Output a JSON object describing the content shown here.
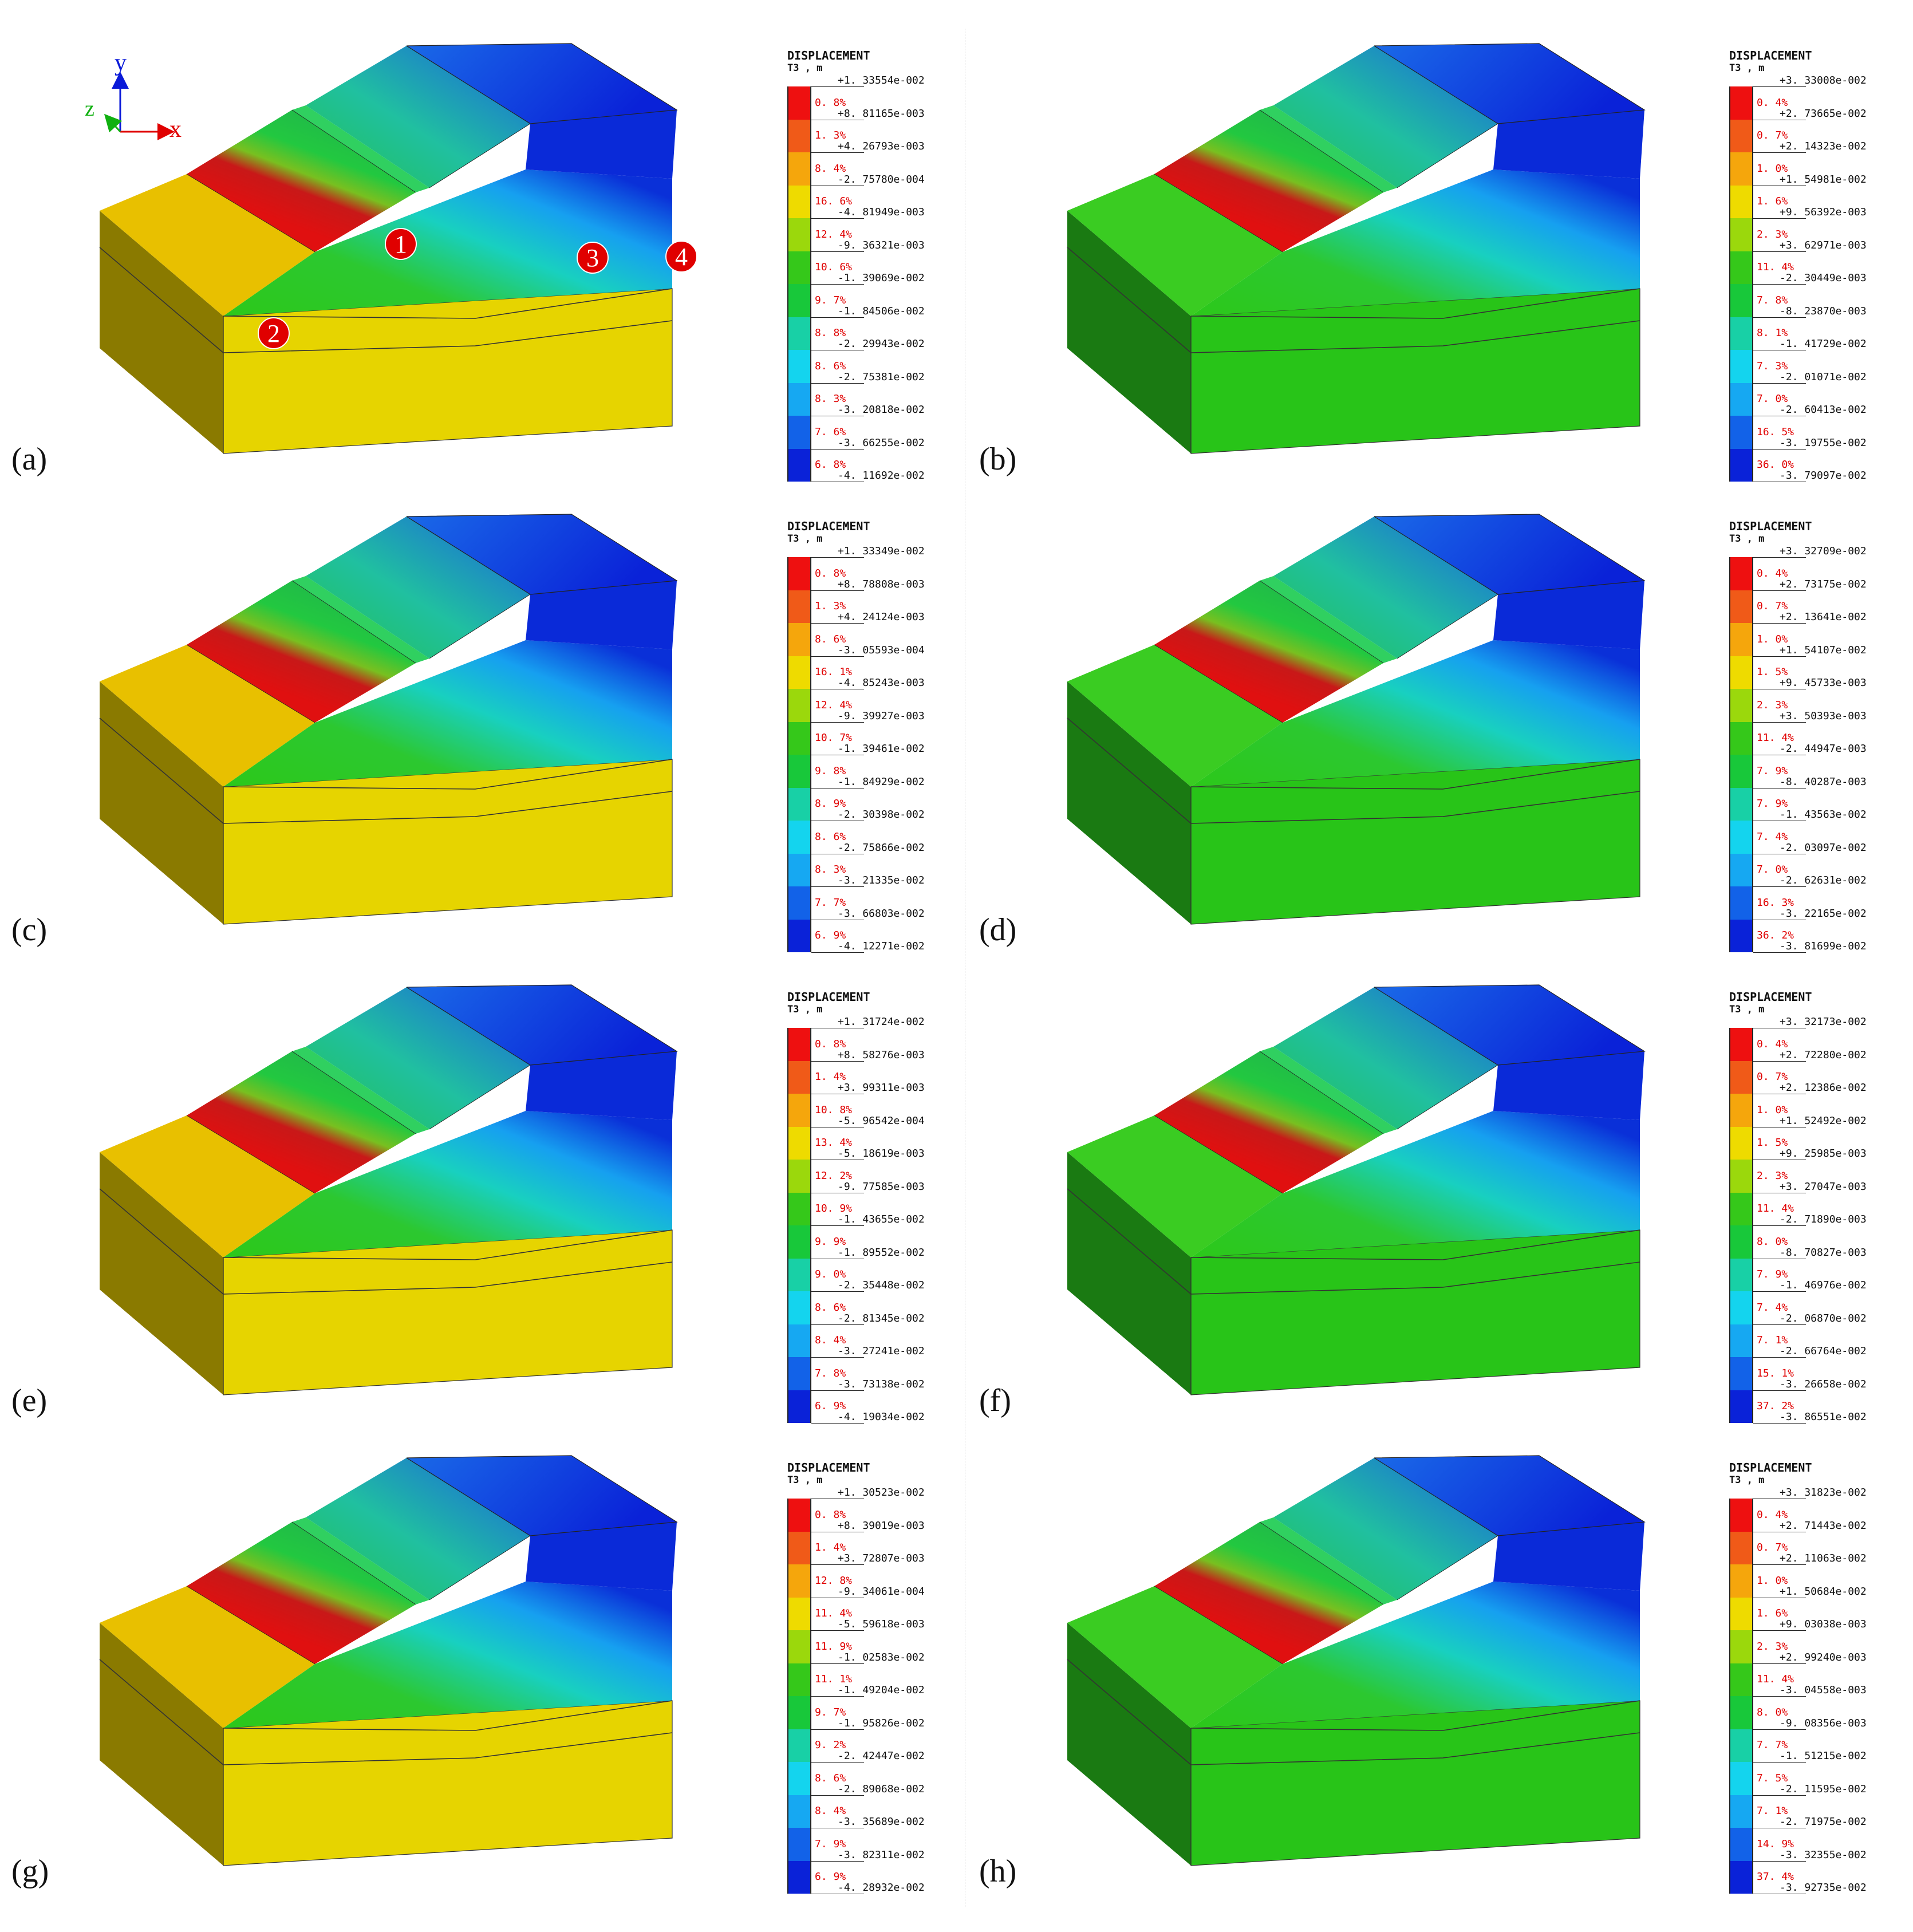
{
  "legend_title": "DISPLACEMENT",
  "legend_subtitle": "T3 , m",
  "axes": {
    "y": "y",
    "z": "z",
    "x": "x"
  },
  "markers": [
    "1",
    "2",
    "3",
    "4"
  ],
  "colors": {
    "bands": [
      "#ee1010",
      "#f05a18",
      "#f5a60c",
      "#eedb00",
      "#9bd80c",
      "#35c81a",
      "#18c83a",
      "#18d0a6",
      "#14d4ee",
      "#16a8f2",
      "#1262e8",
      "#0a22d8"
    ],
    "base_yellow": "#e8d200",
    "base_green": "#2ccb1a"
  },
  "panels": [
    {
      "label": "(a)",
      "variant": "yellow",
      "markers": true,
      "values": [
        "+1. 33554e-002",
        "+8. 81165e-003",
        "+4. 26793e-003",
        "-2. 75780e-004",
        "-4. 81949e-003",
        "-9. 36321e-003",
        "-1. 39069e-002",
        "-1. 84506e-002",
        "-2. 29943e-002",
        "-2. 75381e-002",
        "-3. 20818e-002",
        "-3. 66255e-002",
        "-4. 11692e-002"
      ],
      "pcts": [
        "0. 8%",
        "1. 3%",
        "8. 4%",
        "16. 6%",
        "12. 4%",
        "10. 6%",
        "9. 7%",
        "8. 8%",
        "8. 6%",
        "8. 3%",
        "7. 6%",
        "6. 8%"
      ]
    },
    {
      "label": "(b)",
      "variant": "green",
      "markers": false,
      "values": [
        "+3. 33008e-002",
        "+2. 73665e-002",
        "+2. 14323e-002",
        "+1. 54981e-002",
        "+9. 56392e-003",
        "+3. 62971e-003",
        "-2. 30449e-003",
        "-8. 23870e-003",
        "-1. 41729e-002",
        "-2. 01071e-002",
        "-2. 60413e-002",
        "-3. 19755e-002",
        "-3. 79097e-002"
      ],
      "pcts": [
        "0. 4%",
        "0. 7%",
        "1. 0%",
        "1. 6%",
        "2. 3%",
        "11. 4%",
        "7. 8%",
        "8. 1%",
        "7. 3%",
        "7. 0%",
        "16. 5%",
        "36. 0%"
      ]
    },
    {
      "label": "(c)",
      "variant": "yellow",
      "markers": false,
      "values": [
        "+1. 33349e-002",
        "+8. 78808e-003",
        "+4. 24124e-003",
        "-3. 05593e-004",
        "-4. 85243e-003",
        "-9. 39927e-003",
        "-1. 39461e-002",
        "-1. 84929e-002",
        "-2. 30398e-002",
        "-2. 75866e-002",
        "-3. 21335e-002",
        "-3. 66803e-002",
        "-4. 12271e-002"
      ],
      "pcts": [
        "0. 8%",
        "1. 3%",
        "8. 6%",
        "16. 1%",
        "12. 4%",
        "10. 7%",
        "9. 8%",
        "8. 9%",
        "8. 6%",
        "8. 3%",
        "7. 7%",
        "6. 9%"
      ]
    },
    {
      "label": "(d)",
      "variant": "green",
      "markers": false,
      "values": [
        "+3. 32709e-002",
        "+2. 73175e-002",
        "+2. 13641e-002",
        "+1. 54107e-002",
        "+9. 45733e-003",
        "+3. 50393e-003",
        "-2. 44947e-003",
        "-8. 40287e-003",
        "-1. 43563e-002",
        "-2. 03097e-002",
        "-2. 62631e-002",
        "-3. 22165e-002",
        "-3. 81699e-002"
      ],
      "pcts": [
        "0. 4%",
        "0. 7%",
        "1. 0%",
        "1. 5%",
        "2. 3%",
        "11. 4%",
        "7. 9%",
        "7. 9%",
        "7. 4%",
        "7. 0%",
        "16. 3%",
        "36. 2%"
      ]
    },
    {
      "label": "(e)",
      "variant": "yellow",
      "markers": false,
      "values": [
        "+1. 31724e-002",
        "+8. 58276e-003",
        "+3. 99311e-003",
        "-5. 96542e-004",
        "-5. 18619e-003",
        "-9. 77585e-003",
        "-1. 43655e-002",
        "-1. 89552e-002",
        "-2. 35448e-002",
        "-2. 81345e-002",
        "-3. 27241e-002",
        "-3. 73138e-002",
        "-4. 19034e-002"
      ],
      "pcts": [
        "0. 8%",
        "1. 4%",
        "10. 8%",
        "13. 4%",
        "12. 2%",
        "10. 9%",
        "9. 9%",
        "9. 0%",
        "8. 6%",
        "8. 4%",
        "7. 8%",
        "6. 9%"
      ]
    },
    {
      "label": "(f)",
      "variant": "green",
      "markers": false,
      "values": [
        "+3. 32173e-002",
        "+2. 72280e-002",
        "+2. 12386e-002",
        "+1. 52492e-002",
        "+9. 25985e-003",
        "+3. 27047e-003",
        "-2. 71890e-003",
        "-8. 70827e-003",
        "-1. 46976e-002",
        "-2. 06870e-002",
        "-2. 66764e-002",
        "-3. 26658e-002",
        "-3. 86551e-002"
      ],
      "pcts": [
        "0. 4%",
        "0. 7%",
        "1. 0%",
        "1. 5%",
        "2. 3%",
        "11. 4%",
        "8. 0%",
        "7. 9%",
        "7. 4%",
        "7. 1%",
        "15. 1%",
        "37. 2%"
      ]
    },
    {
      "label": "(g)",
      "variant": "yellow",
      "markers": false,
      "values": [
        "+1. 30523e-002",
        "+8. 39019e-003",
        "+3. 72807e-003",
        "-9. 34061e-004",
        "-5. 59618e-003",
        "-1. 02583e-002",
        "-1. 49204e-002",
        "-1. 95826e-002",
        "-2. 42447e-002",
        "-2. 89068e-002",
        "-3. 35689e-002",
        "-3. 82311e-002",
        "-4. 28932e-002"
      ],
      "pcts": [
        "0. 8%",
        "1. 4%",
        "12. 8%",
        "11. 4%",
        "11. 9%",
        "11. 1%",
        "9. 7%",
        "9. 2%",
        "8. 6%",
        "8. 4%",
        "7. 9%",
        "6. 9%"
      ]
    },
    {
      "label": "(h)",
      "variant": "green",
      "markers": false,
      "values": [
        "+3. 31823e-002",
        "+2. 71443e-002",
        "+2. 11063e-002",
        "+1. 50684e-002",
        "+9. 03038e-003",
        "+2. 99240e-003",
        "-3. 04558e-003",
        "-9. 08356e-003",
        "-1. 51215e-002",
        "-2. 11595e-002",
        "-2. 71975e-002",
        "-3. 32355e-002",
        "-3. 92735e-002"
      ],
      "pcts": [
        "0. 4%",
        "0. 7%",
        "1. 0%",
        "1. 6%",
        "2. 3%",
        "11. 4%",
        "8. 0%",
        "7. 7%",
        "7. 5%",
        "7. 1%",
        "14. 9%",
        "37. 4%"
      ]
    }
  ]
}
